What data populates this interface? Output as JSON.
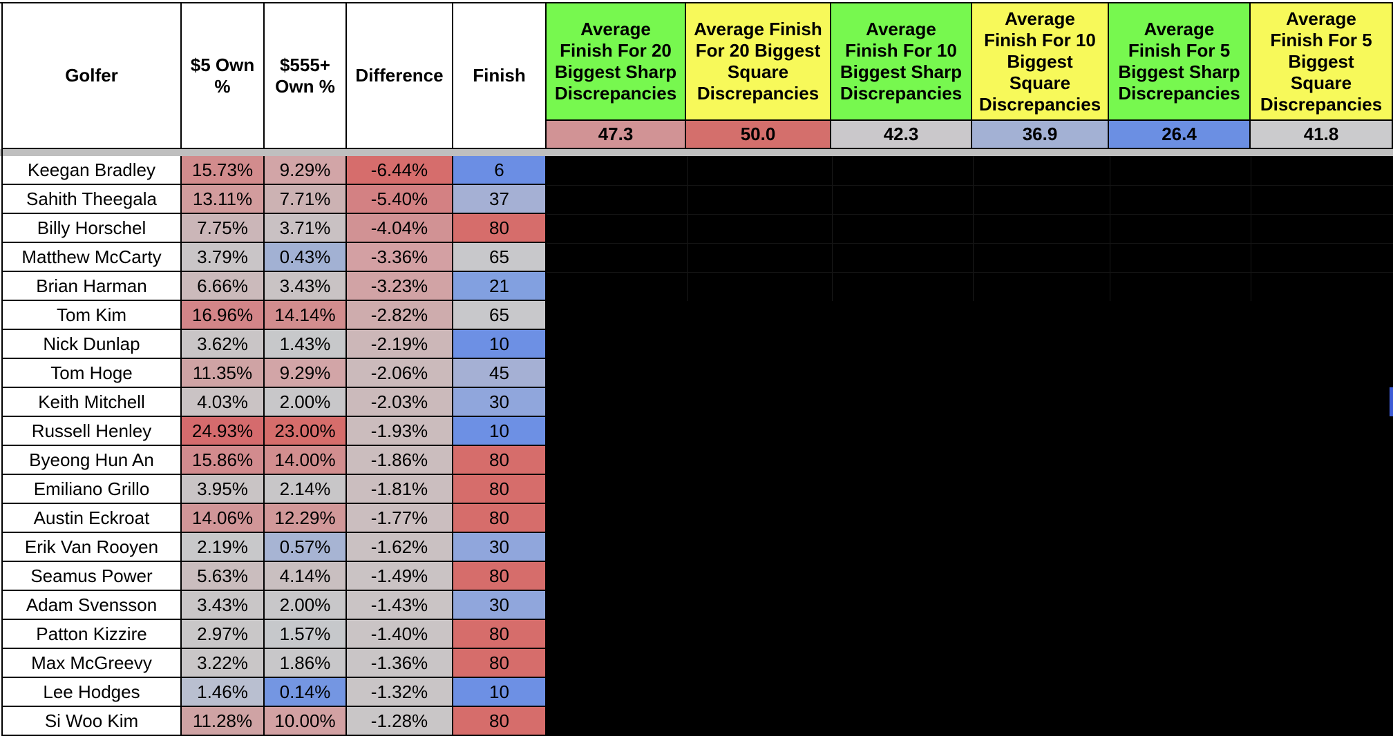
{
  "headers": {
    "golfer": "Golfer",
    "own5": [
      "$5 Own",
      "%"
    ],
    "own555": [
      "$555+",
      "Own %"
    ],
    "difference": "Difference",
    "finish": "Finish",
    "avg_columns": [
      {
        "lines": [
          "Average",
          "Finish For 20",
          "Biggest Sharp",
          "Discrepancies"
        ],
        "value": "47.3",
        "head_color": "#77f84f",
        "value_color": "#d19395"
      },
      {
        "lines": [
          "Average Finish",
          "For 20 Biggest",
          "Square",
          "Discrepancies"
        ],
        "value": "50.0",
        "head_color": "#f7f95a",
        "value_color": "#d46f6c"
      },
      {
        "lines": [
          "Average",
          "Finish For 10",
          "Biggest Sharp",
          "Discrepancies"
        ],
        "value": "42.3",
        "head_color": "#77f84f",
        "value_color": "#cac8cb"
      },
      {
        "lines": [
          "Average",
          "Finish For 10",
          "Biggest",
          "Square",
          "Discrepancies"
        ],
        "value": "36.9",
        "head_color": "#f7f95a",
        "value_color": "#a3b1d4"
      },
      {
        "lines": [
          "Average",
          "Finish For 5",
          "Biggest Sharp",
          "Discrepancies"
        ],
        "value": "26.4",
        "head_color": "#77f84f",
        "value_color": "#6b8fe3"
      },
      {
        "lines": [
          "Average",
          "Finish For 5",
          "Biggest",
          "Square",
          "Discrepancies"
        ],
        "value": "41.8",
        "head_color": "#f7f95a",
        "value_color": "#cbcbcd"
      }
    ]
  },
  "rows": [
    {
      "golfer": "Keegan Bradley",
      "own5": "15.73%",
      "own555": "9.29%",
      "diff": "-6.44%",
      "finish": "6",
      "c5": "#d28c8d",
      "c555": "#d2a5a7",
      "cd": "#d66d6c",
      "cf": "#6b8ee4"
    },
    {
      "golfer": "Sahith Theegala",
      "own5": "13.11%",
      "own555": "7.71%",
      "diff": "-5.40%",
      "finish": "37",
      "c5": "#d29c9d",
      "c555": "#ccb2b3",
      "cd": "#d38183",
      "cf": "#a5b0d4"
    },
    {
      "golfer": "Billy Horschel",
      "own5": "7.75%",
      "own555": "3.71%",
      "diff": "-4.04%",
      "finish": "80",
      "c5": "#cbb6b8",
      "c555": "#c9c1c3",
      "cd": "#d19294",
      "cf": "#d66d6b"
    },
    {
      "golfer": "Matthew McCarty",
      "own5": "3.79%",
      "own555": "0.43%",
      "diff": "-3.36%",
      "finish": "65",
      "c5": "#c9c5c7",
      "c555": "#a2b1d3",
      "cd": "#d3a0a3",
      "cf": "#c8c8cb"
    },
    {
      "golfer": "Brian Harman",
      "own5": "6.66%",
      "own555": "3.43%",
      "diff": "-3.23%",
      "finish": "21",
      "c5": "#cbbabb",
      "c555": "#c9c3c4",
      "cd": "#d1a3a5",
      "cf": "#82a0e0"
    },
    {
      "golfer": "Tom Kim",
      "own5": "16.96%",
      "own555": "14.14%",
      "diff": "-2.82%",
      "finish": "65",
      "c5": "#d38588",
      "c555": "#d28d8e",
      "cd": "#ceacad",
      "cf": "#c8c8cb"
    },
    {
      "golfer": "Nick Dunlap",
      "own5": "3.62%",
      "own555": "1.43%",
      "diff": "-2.19%",
      "finish": "10",
      "c5": "#c9c5c6",
      "c555": "#c7c8ca",
      "cd": "#ccb7b8",
      "cf": "#6d90e4"
    },
    {
      "golfer": "Tom Hoge",
      "own5": "11.35%",
      "own555": "9.29%",
      "diff": "-2.06%",
      "finish": "45",
      "c5": "#cfa3a4",
      "c555": "#d2a5a7",
      "cd": "#cbbabb",
      "cf": "#a5b0d4"
    },
    {
      "golfer": "Keith Mitchell",
      "own5": "4.03%",
      "own555": "2.00%",
      "diff": "-2.03%",
      "finish": "30",
      "c5": "#cac3c4",
      "c555": "#c8c7c9",
      "cd": "#cbbabb",
      "cf": "#90a6dc"
    },
    {
      "golfer": "Russell Henley",
      "own5": "24.93%",
      "own555": "23.00%",
      "diff": "-1.93%",
      "finish": "10",
      "c5": "#d56b6d",
      "c555": "#d66d6b",
      "cd": "#cbbcbd",
      "cf": "#6d90e4"
    },
    {
      "golfer": "Byeong Hun An",
      "own5": "15.86%",
      "own555": "14.00%",
      "diff": "-1.86%",
      "finish": "80",
      "c5": "#d28b8e",
      "c555": "#d28e8f",
      "cd": "#cbbdbe",
      "cf": "#d66d6b"
    },
    {
      "golfer": "Emiliano Grillo",
      "own5": "3.95%",
      "own555": "2.14%",
      "diff": "-1.81%",
      "finish": "80",
      "c5": "#c9c4c5",
      "c555": "#c8c6c8",
      "cd": "#cbbebf",
      "cf": "#d66d6b"
    },
    {
      "golfer": "Austin Eckroat",
      "own5": "14.06%",
      "own555": "12.29%",
      "diff": "-1.77%",
      "finish": "80",
      "c5": "#d19698",
      "c555": "#d19899",
      "cd": "#cbbebf",
      "cf": "#d66d6b"
    },
    {
      "golfer": "Erik Van Rooyen",
      "own5": "2.19%",
      "own555": "0.57%",
      "diff": "-1.62%",
      "finish": "30",
      "c5": "#c8c8ca",
      "c555": "#a7b4d3",
      "cd": "#cac1c2",
      "cf": "#90a6dc"
    },
    {
      "golfer": "Seamus Power",
      "own5": "5.63%",
      "own555": "4.14%",
      "diff": "-1.49%",
      "finish": "80",
      "c5": "#cabdbe",
      "c555": "#c9bfc0",
      "cd": "#cac3c4",
      "cf": "#d66d6b"
    },
    {
      "golfer": "Adam Svensson",
      "own5": "3.43%",
      "own555": "2.00%",
      "diff": "-1.43%",
      "finish": "30",
      "c5": "#c9c6c7",
      "c555": "#c8c7c9",
      "cd": "#cac4c5",
      "cf": "#90a6dc"
    },
    {
      "golfer": "Patton Kizzire",
      "own5": "2.97%",
      "own555": "1.57%",
      "diff": "-1.40%",
      "finish": "80",
      "c5": "#c9c7c8",
      "c555": "#c6c8cb",
      "cd": "#cac4c5",
      "cf": "#d66d6b"
    },
    {
      "golfer": "Max McGreevy",
      "own5": "3.22%",
      "own555": "1.86%",
      "diff": "-1.36%",
      "finish": "80",
      "c5": "#c9c6c7",
      "c555": "#c8c7c9",
      "cd": "#c9c5c6",
      "cf": "#d66d6b"
    },
    {
      "golfer": "Lee Hodges",
      "own5": "1.46%",
      "own555": "0.14%",
      "diff": "-1.32%",
      "finish": "10",
      "c5": "#b9bfd0",
      "c555": "#7496e2",
      "cd": "#c9c5c6",
      "cf": "#6d90e4"
    },
    {
      "golfer": "Si Woo Kim",
      "own5": "11.28%",
      "own555": "10.00%",
      "diff": "-1.28%",
      "finish": "80",
      "c5": "#cfa3a4",
      "c555": "#d2a1a3",
      "cd": "#c9c6c7",
      "cf": "#d66d6b"
    }
  ]
}
